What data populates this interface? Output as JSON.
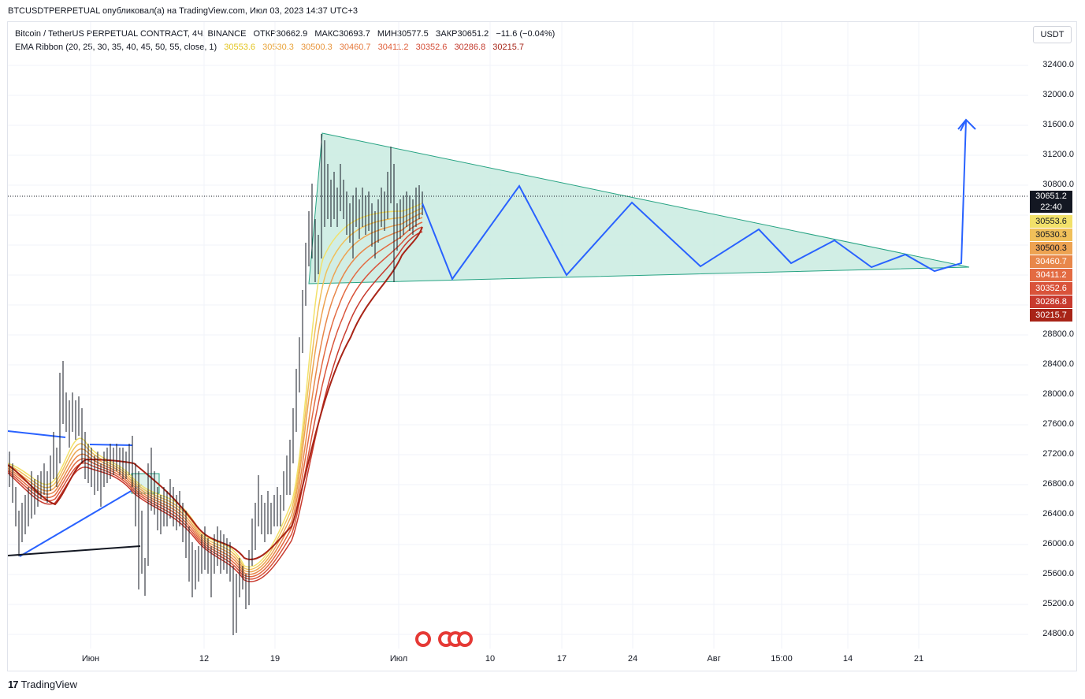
{
  "header": {
    "published": "BTCUSDTPERPETUAL опубликовал(а) на TradingView.com, Июл 03, 2023 14:37 UTC+3"
  },
  "legend": {
    "symbol": "Bitcoin / TetherUS PERPETUAL CONTRACT, 4Ч, BINANCE",
    "open": "ОТКР30662.9",
    "high": "МАКС30693.7",
    "low": "МИН30577.5",
    "close": "ЗАКР30651.2",
    "change": "−11.6 (−0.04%)",
    "indicator": "EMA Ribbon (20, 25, 30, 35, 40, 45, 50, 55, close, 1)",
    "ema_values": [
      "30553.6",
      "30530.3",
      "30500.3",
      "30460.7",
      "30411.2",
      "30352.6",
      "30286.8",
      "30215.7"
    ],
    "ema_colors": [
      "#f2e16a",
      "#f0c05a",
      "#eda352",
      "#e8874a",
      "#e36b42",
      "#d9533a",
      "#c83a2e",
      "#a82417"
    ]
  },
  "currency": "USDT",
  "y_axis": [
    "32400.0",
    "32000.0",
    "31600.0",
    "31200.0",
    "30800.0",
    "28800.0",
    "28400.0",
    "28000.0",
    "27600.0",
    "27200.0",
    "26800.0",
    "26400.0",
    "26000.0",
    "25600.0",
    "25200.0",
    "24800.0"
  ],
  "price_tag": {
    "price": "30651.2",
    "countdown": "22:40",
    "color": "#131722"
  },
  "ema_tags": [
    "30553.6",
    "30530.3",
    "30500.3",
    "30460.7",
    "30411.2",
    "30352.6",
    "30286.8",
    "30215.7"
  ],
  "x_axis": [
    "Июн",
    "12",
    "19",
    "Июл",
    "10",
    "17",
    "24",
    "Авг",
    "15:00",
    "14",
    "21"
  ],
  "footer": {
    "brand": "TradingView"
  },
  "colors": {
    "triangle_fill": "#c9ebe1",
    "triangle_stroke": "#27a383",
    "projection": "#2962ff"
  }
}
